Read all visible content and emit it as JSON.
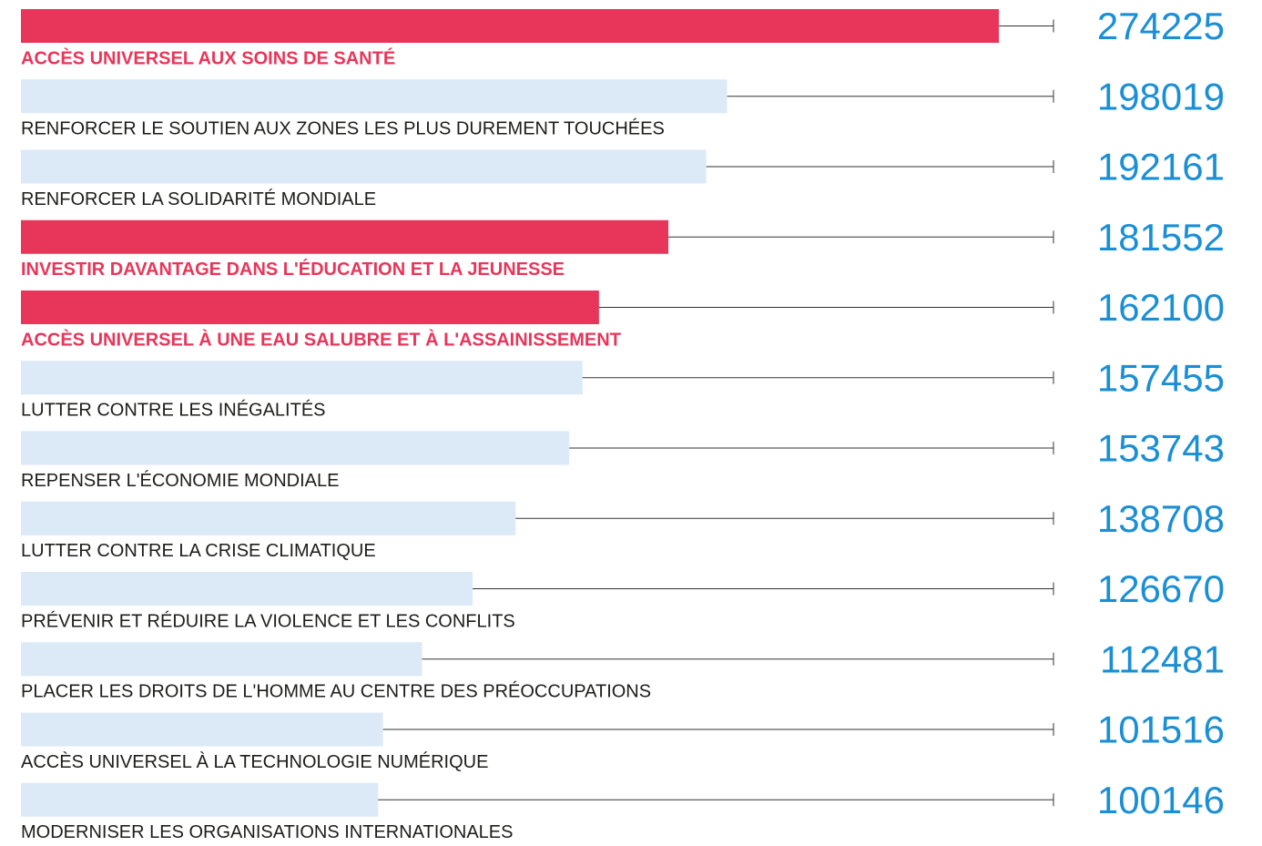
{
  "chart_data": {
    "type": "bar",
    "categories": [
      "ACCÈS UNIVERSEL AUX SOINS DE SANTÉ",
      "RENFORCER LE SOUTIEN AUX ZONES LES PLUS DUREMENT TOUCHÉES",
      "RENFORCER LA SOLIDARITÉ MONDIALE",
      "INVESTIR DAVANTAGE DANS L'ÉDUCATION ET LA JEUNESSE",
      "ACCÈS UNIVERSEL À UNE EAU SALUBRE ET À L'ASSAINISSEMENT",
      "LUTTER CONTRE LES INÉGALITÉS",
      "REPENSER L'ÉCONOMIE MONDIALE",
      "LUTTER CONTRE LA CRISE CLIMATIQUE",
      "PRÉVENIR ET RÉDUIRE LA VIOLENCE ET LES CONFLITS",
      "PLACER LES DROITS DE L'HOMME AU CENTRE DES PRÉOCCUPATIONS",
      "ACCÈS UNIVERSEL À LA TECHNOLOGIE NUMÉRIQUE",
      "MODERNISER LES ORGANISATIONS INTERNATIONALES"
    ],
    "values": [
      274225,
      198019,
      192161,
      181552,
      162100,
      157455,
      153743,
      138708,
      126670,
      112481,
      101516,
      100146
    ],
    "highlight": [
      true,
      false,
      false,
      true,
      true,
      false,
      false,
      false,
      false,
      false,
      false,
      false
    ],
    "highlight_color": "#e8365a",
    "base_color": "#dce9f7"
  }
}
